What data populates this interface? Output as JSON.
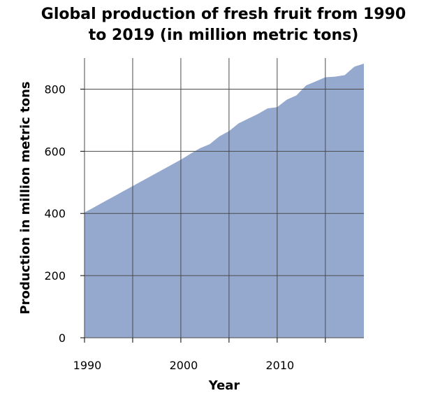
{
  "chart_data": {
    "type": "area",
    "title_lines": [
      "Global production of fresh fruit from 1990",
      "to 2019 (in million metric tons)"
    ],
    "xlabel": "Year",
    "ylabel": "Production in million metric tons",
    "xlim": [
      1990,
      2019
    ],
    "ylim": [
      0,
      900
    ],
    "x_ticks": [
      1990,
      1995,
      2000,
      2005,
      2010,
      2015
    ],
    "x_tick_labels": [
      {
        "x": 1990,
        "label": "1990"
      },
      {
        "x": 2000,
        "label": "2000"
      },
      {
        "x": 2010,
        "label": "2010"
      }
    ],
    "y_ticks": [
      0,
      200,
      400,
      600,
      800
    ],
    "grid": true,
    "fill_color": "#95a9cf",
    "series": [
      {
        "x": [
          1990,
          1991,
          1992,
          1993,
          1994,
          1995,
          1996,
          1997,
          1998,
          1999,
          2000,
          2001,
          2002,
          2003,
          2004,
          2005,
          2006,
          2007,
          2008,
          2009,
          2010,
          2011,
          2012,
          2013,
          2014,
          2015,
          2016,
          2017,
          2018,
          2019
        ],
        "values": [
          403,
          420,
          437,
          454,
          471,
          488,
          505,
          522,
          539,
          556,
          573,
          592,
          610,
          623,
          648,
          665,
          690,
          705,
          720,
          738,
          742,
          766,
          780,
          812,
          825,
          838,
          840,
          845,
          872,
          882
        ]
      }
    ]
  }
}
